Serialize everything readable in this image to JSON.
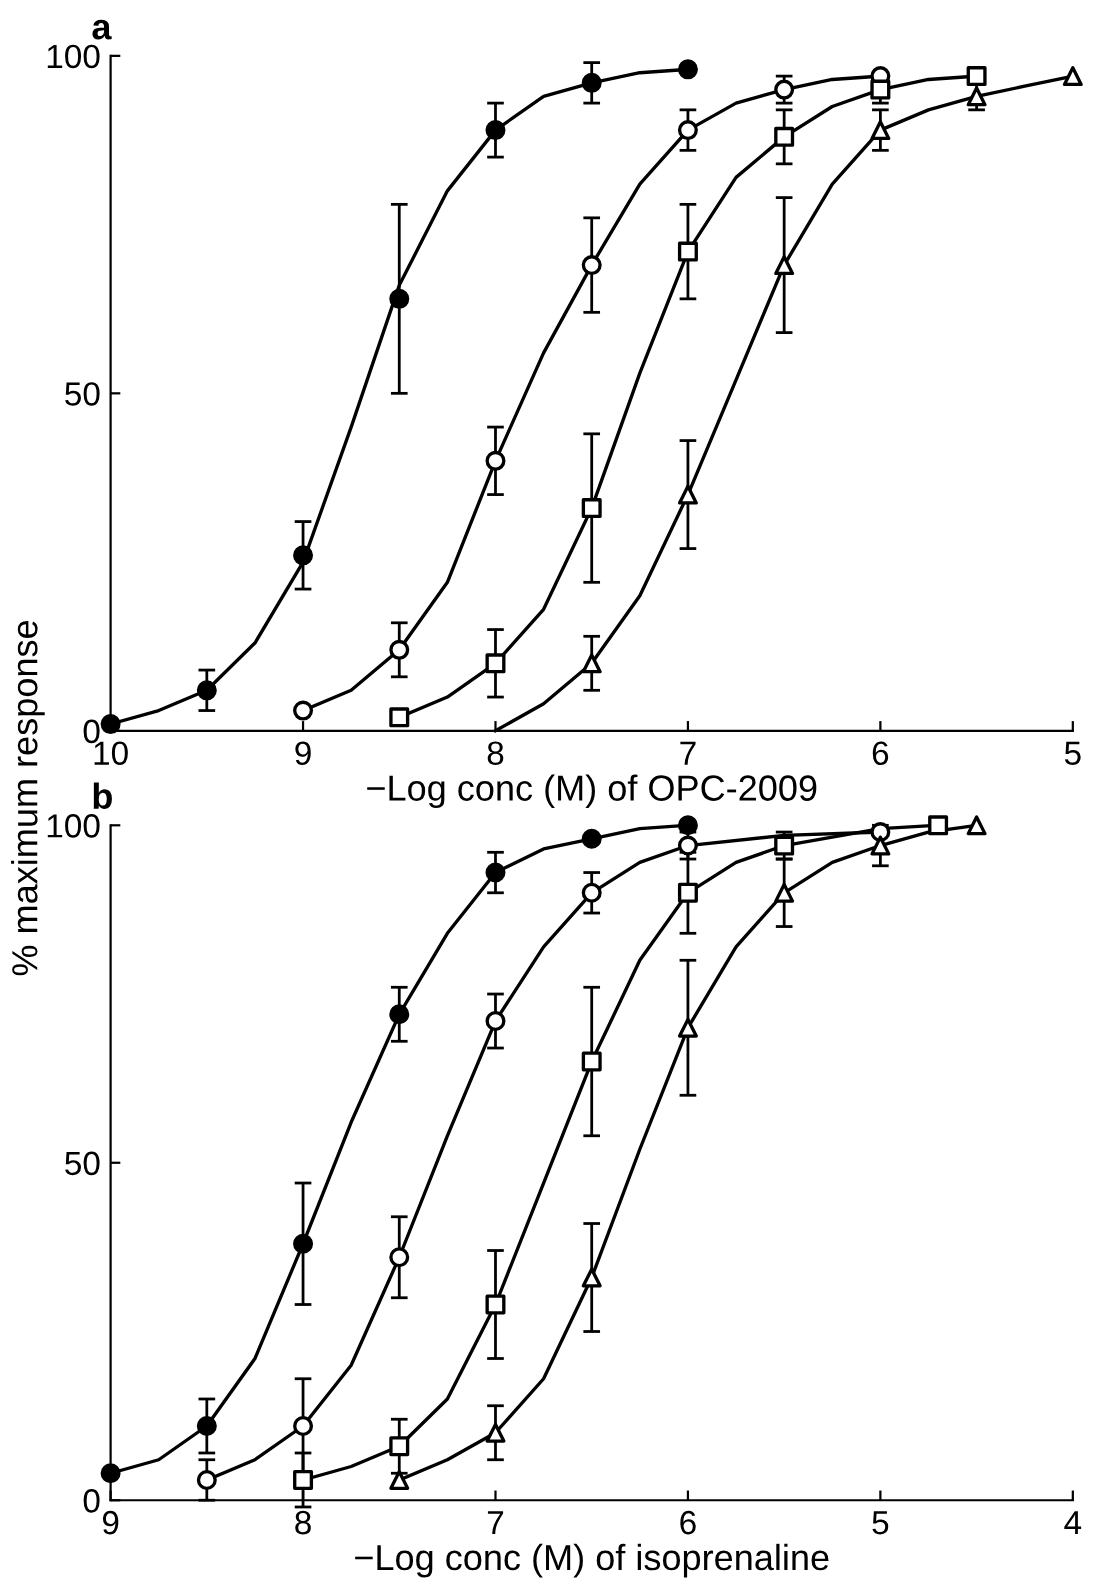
{
  "chart_data": [
    {
      "type": "line",
      "title": "a",
      "xlabel": "−Log conc (M) of OPC-2009",
      "ylabel": "% maximum response",
      "xlim": [
        10,
        5
      ],
      "ylim": [
        0,
        100
      ],
      "xticks": [
        10,
        9,
        8,
        7,
        6,
        5
      ],
      "yticks": [
        0,
        50,
        100
      ],
      "line_style": "solid",
      "series": [
        {
          "color": "#000000",
          "x": [
            10,
            9.75,
            9.5,
            9.25,
            9,
            8.75,
            8.5,
            8.25,
            8,
            7.75,
            7.5,
            7.25,
            7
          ],
          "values": [
            1,
            3,
            6,
            13,
            25,
            45,
            66,
            80,
            89,
            94,
            96,
            97.5,
            98
          ]
        },
        {
          "color": "#000000",
          "x": [
            9,
            8.75,
            8.5,
            8.25,
            8,
            7.75,
            7.5,
            7.25,
            7,
            6.75,
            6.5,
            6.25,
            6
          ],
          "values": [
            3,
            6,
            12,
            22,
            40,
            56,
            69,
            81,
            89,
            93,
            95,
            96.5,
            97
          ]
        },
        {
          "color": "#000000",
          "x": [
            8.5,
            8.25,
            8,
            7.75,
            7.5,
            7.25,
            7,
            6.75,
            6.5,
            6.25,
            6,
            5.75,
            5.5
          ],
          "values": [
            2,
            5,
            10,
            18,
            33,
            53,
            71,
            82,
            88,
            92.5,
            95,
            96.5,
            97
          ]
        },
        {
          "color": "#000000",
          "x": [
            8,
            7.75,
            7.5,
            7.25,
            7,
            6.75,
            6.5,
            6.25,
            6,
            5.75,
            5.5,
            5.25,
            5
          ],
          "values": [
            0,
            4,
            10,
            20,
            35,
            52,
            69,
            81,
            89,
            92,
            94,
            95.5,
            97
          ]
        },
        {
          "type": "scatter",
          "color": "#000000",
          "marker": "circle",
          "x": [
            10,
            9.5,
            9,
            8.5,
            8,
            7.5,
            7
          ],
          "values": [
            1,
            6,
            26,
            64,
            89,
            96,
            98
          ],
          "errors": [
            null,
            3,
            5,
            14,
            4,
            3,
            null
          ]
        },
        {
          "type": "scatter",
          "color": "#ffffff",
          "marker": "circle",
          "x": [
            9,
            8.5,
            8,
            7.5,
            7,
            6.5,
            6
          ],
          "values": [
            3,
            12,
            40,
            69,
            89,
            95,
            97
          ],
          "errors": [
            null,
            4,
            5,
            7,
            3,
            2,
            null
          ]
        },
        {
          "type": "scatter",
          "color": "#ffffff",
          "marker": "square",
          "x": [
            8.5,
            8,
            7.5,
            7,
            6.5,
            6,
            5.5
          ],
          "values": [
            2,
            10,
            33,
            71,
            88,
            95,
            97
          ],
          "errors": [
            null,
            5,
            11,
            7,
            4,
            2,
            null
          ]
        },
        {
          "type": "scatter",
          "color": "#ffffff",
          "marker": "triangle",
          "x": [
            7.5,
            7,
            6.5,
            6,
            5.5,
            5
          ],
          "values": [
            10,
            35,
            69,
            89,
            94,
            97
          ],
          "errors": [
            4,
            8,
            10,
            3,
            2,
            null
          ]
        }
      ]
    },
    {
      "type": "line",
      "title": "b",
      "xlabel": "−Log conc (M) of isoprenaline",
      "xlim": [
        9,
        4
      ],
      "ylim": [
        0,
        100
      ],
      "xticks": [
        9,
        8,
        7,
        6,
        5,
        4
      ],
      "yticks": [
        0,
        50,
        100
      ],
      "line_style": "solid",
      "series": [
        {
          "color": "#000000",
          "x": [
            9,
            8.75,
            8.5,
            8.25,
            8,
            7.75,
            7.5,
            7.25,
            7,
            6.75,
            6.5,
            6.25,
            6
          ],
          "values": [
            4,
            6,
            11,
            21,
            38,
            56,
            72,
            84,
            93,
            96.5,
            98,
            99.5,
            100
          ]
        },
        {
          "color": "#000000",
          "x": [
            8.5,
            8.25,
            8,
            7.75,
            7.5,
            7.25,
            7,
            6.75,
            6.5,
            6.25,
            6,
            5.5,
            5
          ],
          "values": [
            3,
            6,
            11,
            20,
            36,
            54,
            71,
            82,
            90,
            94.5,
            97,
            98.5,
            99
          ]
        },
        {
          "color": "#000000",
          "x": [
            8,
            7.75,
            7.5,
            7.25,
            7,
            6.75,
            6.5,
            6.25,
            6,
            5.75,
            5.5,
            5,
            4.7
          ],
          "values": [
            3,
            5,
            8,
            15,
            29,
            47,
            65,
            80,
            90,
            94.5,
            97,
            99.5,
            100
          ]
        },
        {
          "color": "#000000",
          "x": [
            7.5,
            7.25,
            7,
            6.75,
            6.5,
            6.25,
            6,
            5.75,
            5.5,
            5.25,
            5,
            4.75,
            4.5
          ],
          "values": [
            3,
            6,
            10,
            18,
            33,
            52,
            70,
            82,
            90,
            94.5,
            97,
            99,
            100
          ]
        },
        {
          "type": "scatter",
          "color": "#000000",
          "marker": "circle",
          "x": [
            9,
            8.5,
            8,
            7.5,
            7,
            6.5,
            6
          ],
          "values": [
            4,
            11,
            38,
            72,
            93,
            98,
            100
          ],
          "errors": [
            null,
            4,
            9,
            4,
            3,
            null,
            null
          ]
        },
        {
          "type": "scatter",
          "color": "#ffffff",
          "marker": "circle",
          "x": [
            8.5,
            8,
            7.5,
            7,
            6.5,
            6,
            5
          ],
          "values": [
            3,
            11,
            36,
            71,
            90,
            97,
            99
          ],
          "errors": [
            3,
            7,
            6,
            4,
            3,
            2,
            null
          ]
        },
        {
          "type": "scatter",
          "color": "#ffffff",
          "marker": "square",
          "x": [
            8,
            7.5,
            7,
            6.5,
            6,
            5.5,
            4.7
          ],
          "values": [
            3,
            8,
            29,
            65,
            90,
            97,
            100
          ],
          "errors": [
            4,
            4,
            8,
            11,
            6,
            2,
            null
          ]
        },
        {
          "type": "scatter",
          "color": "#ffffff",
          "marker": "triangle",
          "x": [
            7.5,
            7,
            6.5,
            6,
            5.5,
            5,
            4.5
          ],
          "values": [
            3,
            10,
            33,
            70,
            90,
            97,
            100
          ],
          "errors": [
            null,
            4,
            8,
            10,
            5,
            3,
            null
          ]
        }
      ]
    }
  ]
}
